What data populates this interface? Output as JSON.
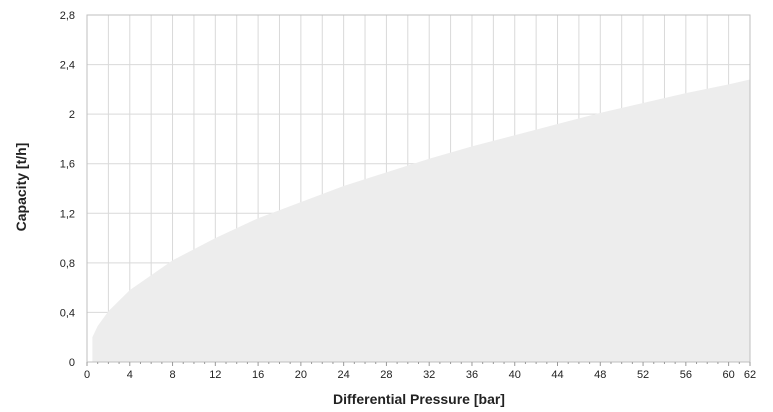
{
  "chart_data": {
    "type": "area",
    "title": "",
    "xlabel": "Differential Pressure [bar]",
    "ylabel": "Capacity [t/h]",
    "xlim": [
      0,
      62
    ],
    "ylim": [
      0,
      2.8
    ],
    "x_ticks": [
      0,
      4,
      8,
      12,
      16,
      20,
      24,
      28,
      32,
      36,
      40,
      44,
      48,
      52,
      56,
      60,
      62
    ],
    "x_tick_labels": [
      "0",
      "4",
      "8",
      "12",
      "16",
      "20",
      "24",
      "28",
      "32",
      "36",
      "40",
      "44",
      "48",
      "52",
      "56",
      "60",
      "62"
    ],
    "y_ticks": [
      0,
      0.4,
      0.8,
      1.2,
      1.6,
      2.0,
      2.4,
      2.8
    ],
    "y_tick_labels": [
      "0",
      "0,4",
      "0,8",
      "1,2",
      "1,6",
      "2",
      "2,4",
      "2,8"
    ],
    "grid": true,
    "series": [
      {
        "x": [
          0.5,
          1,
          2,
          4,
          8,
          12,
          16,
          20,
          24,
          28,
          32,
          36,
          40,
          44,
          48,
          52,
          56,
          60,
          62
        ],
        "y": [
          0.2,
          0.29,
          0.41,
          0.58,
          0.82,
          1.0,
          1.16,
          1.29,
          1.42,
          1.53,
          1.64,
          1.74,
          1.83,
          1.92,
          2.01,
          2.09,
          2.17,
          2.24,
          2.28
        ]
      }
    ],
    "colors": {
      "fill": "#ededed",
      "grid": "#d9d9d9",
      "frame": "#bfbfbf"
    }
  }
}
